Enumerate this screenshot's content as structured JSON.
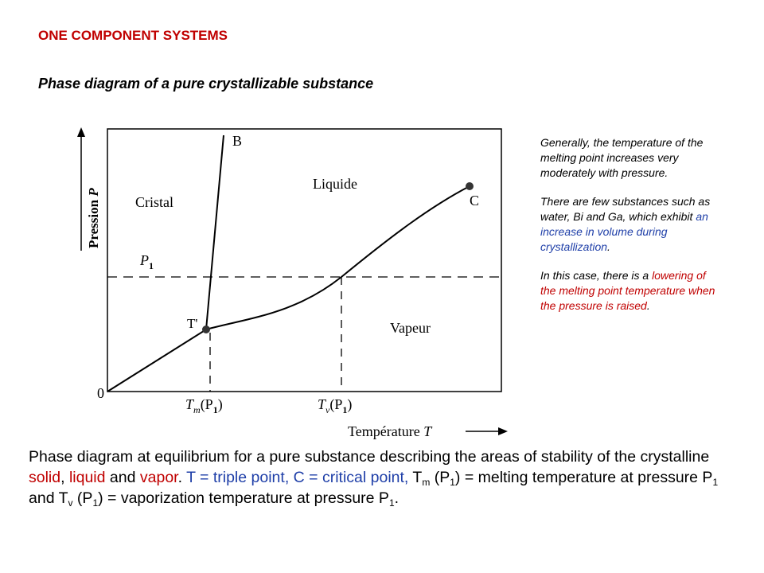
{
  "header": {
    "section_title": "ONE COMPONENT SYSTEMS",
    "subtitle": "Phase diagram of a pure crystallizable substance"
  },
  "diagram": {
    "axis_y_label": "Pression",
    "axis_y_symbol": "P",
    "axis_x_label": "Température",
    "axis_x_symbol": "T",
    "region_solid": "Cristal",
    "region_liquid": "Liquide",
    "region_vapor": "Vapeur",
    "point_b": "B",
    "point_c": "C",
    "point_t": "T'",
    "origin": "0",
    "p1_label": "P",
    "p1_sub": "1",
    "tm_label": "T",
    "tm_sub": "m",
    "tm_arg": "(P",
    "tm_arg_sub": "1",
    "tm_close": ")",
    "tv_label": "T",
    "tv_sub": "v",
    "tv_arg": "(P",
    "tv_arg_sub": "1",
    "tv_close": ")"
  },
  "notes": {
    "p1": "Generally, the temperature of the melting point increases very moderately with pressure.",
    "p2_a": "There are few substances such as water, Bi and Ga, which exhibit ",
    "p2_b": "an increase in volume during crystallization",
    "p2_c": ".",
    "p3_a": "In this case, there is a ",
    "p3_b": "lowering of the melting point temperature when the pressure is raised",
    "p3_c": "."
  },
  "caption": {
    "t1": "Phase diagram at equilibrium for a pure substance describing the areas of stability of the crystalline ",
    "solid": "solid",
    "t2": ", ",
    "liquid": "liquid",
    "t3": " and ",
    "vapor": "vapor",
    "t4": ". ",
    "points": "T = triple point, C = critical point,",
    "t5": " T",
    "sub_m": "m",
    "t6": " (P",
    "sub_1a": "1",
    "t7": ") = melting temperature at pressure P",
    "sub_1b": "1",
    "t8": " and T",
    "sub_v": "v",
    "t9": " (P",
    "sub_1c": "1",
    "t10": ") = vaporization temperature at pressure P",
    "sub_1d": "1",
    "t11": "."
  },
  "colors": {
    "title_red": "#c00000",
    "highlight_blue": "#1f3fa8",
    "highlight_red": "#c00000"
  }
}
